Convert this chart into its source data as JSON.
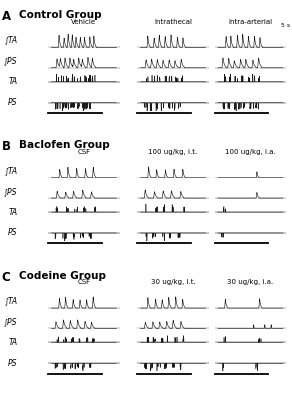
{
  "panel_labels": [
    "A",
    "B",
    "C"
  ],
  "panel_titles": [
    "Control Group",
    "Baclofen Group",
    "Codeine Group"
  ],
  "col_headers_A": [
    "Vehicle",
    "Intrathecal",
    "Intra-arterial"
  ],
  "col_headers_B": [
    "CSF",
    "100 ug/kg, i.t.",
    "100 ug/kg, i.a."
  ],
  "col_headers_C": [
    "CSF",
    "30 ug/kg, i.t.",
    "30 ug/kg, i.a."
  ],
  "trace_labels": [
    "∫TA",
    "∫PS",
    "TA",
    "PS"
  ],
  "scale_bar_label": "5 s",
  "bg": "#ffffff",
  "tc": "#1a1a1a",
  "coughs_A": [
    9,
    7,
    7
  ],
  "coughs_B": [
    5,
    5,
    1
  ],
  "coughs_C": [
    6,
    6,
    2
  ]
}
